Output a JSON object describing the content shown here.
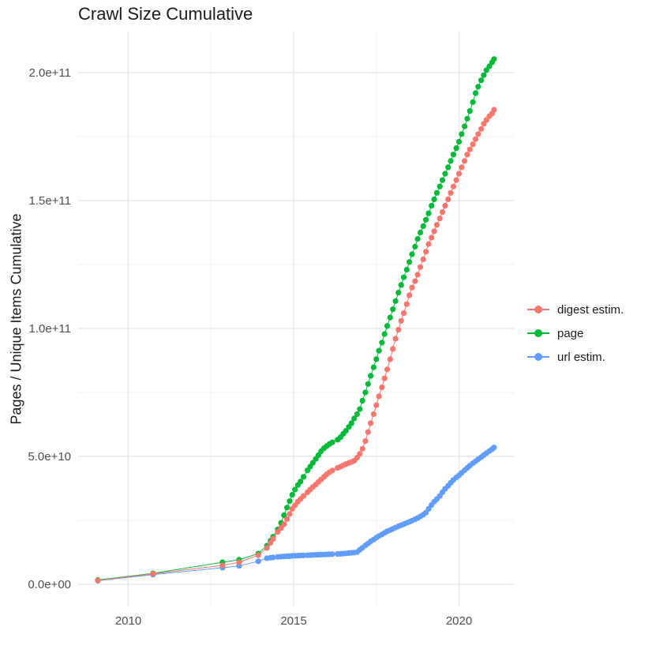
{
  "title": "Crawl Size Cumulative",
  "y_axis_title": "Pages / Unique Items Cumulative",
  "legend": {
    "position": "right",
    "items": [
      {
        "label": "digest estim.",
        "color": "#F8766D"
      },
      {
        "label": "page",
        "color": "#00BA38"
      },
      {
        "label": "url estim.",
        "color": "#619CFF"
      }
    ]
  },
  "style": {
    "background": "#FFFFFF",
    "grid_major_color": "#E8E8E8",
    "grid_minor_color": "#F1F1F1",
    "tick_text_color": "#4D4D4D",
    "title_text_color": "#1A1A1A"
  },
  "chart_data": {
    "type": "scatter",
    "title": "Crawl Size Cumulative",
    "xlabel": "",
    "ylabel": "Pages / Unique Items Cumulative",
    "grid": true,
    "legend_position": "right",
    "values_unit": "billions (value × 1e9 items)",
    "xlim": [
      2008.5,
      2021.7
    ],
    "ylim_e9": [
      0,
      215
    ],
    "x_ticks": [
      {
        "value": 2010,
        "label": "2010"
      },
      {
        "value": 2015,
        "label": "2015"
      },
      {
        "value": 2020,
        "label": "2020"
      }
    ],
    "x_minor": [
      2012.5,
      2017.5
    ],
    "y_ticks": [
      {
        "value_e9": 0,
        "label": "0.0e+00"
      },
      {
        "value_e9": 50,
        "label": "5.0e+10"
      },
      {
        "value_e9": 100,
        "label": "1.0e+11"
      },
      {
        "value_e9": 150,
        "label": "1.5e+11"
      },
      {
        "value_e9": 200,
        "label": "2.0e+11"
      }
    ],
    "y_minor_e9": [
      25,
      75,
      125,
      175
    ],
    "x": [
      2009.08,
      2010.75,
      2012.85,
      2013.35,
      2013.93,
      2014.19,
      2014.3,
      2014.38,
      2014.52,
      2014.62,
      2014.71,
      2014.8,
      2014.88,
      2014.96,
      2015.04,
      2015.13,
      2015.21,
      2015.3,
      2015.42,
      2015.5,
      2015.58,
      2015.67,
      2015.75,
      2015.83,
      2015.92,
      2016.0,
      2016.08,
      2016.17,
      2016.33,
      2016.42,
      2016.5,
      2016.58,
      2016.67,
      2016.75,
      2016.83,
      2016.92,
      2017.0,
      2017.08,
      2017.17,
      2017.25,
      2017.33,
      2017.42,
      2017.5,
      2017.58,
      2017.67,
      2017.75,
      2017.83,
      2017.92,
      2018.0,
      2018.08,
      2018.17,
      2018.25,
      2018.33,
      2018.42,
      2018.5,
      2018.58,
      2018.67,
      2018.75,
      2018.83,
      2018.92,
      2019.0,
      2019.08,
      2019.17,
      2019.25,
      2019.33,
      2019.42,
      2019.5,
      2019.58,
      2019.67,
      2019.75,
      2019.83,
      2019.92,
      2020.0,
      2020.08,
      2020.17,
      2020.25,
      2020.33,
      2020.42,
      2020.5,
      2020.58,
      2020.67,
      2020.75,
      2020.83,
      2020.92,
      2021.0,
      2021.06
    ],
    "series": [
      {
        "name": "digest estim.",
        "color": "#F8766D",
        "values_e9": [
          1.5,
          4.1,
          7.4,
          8.6,
          11.4,
          14.2,
          16.2,
          17.8,
          20.5,
          22.0,
          23.5,
          25.5,
          27.5,
          29.5,
          30.9,
          32.3,
          33.4,
          34.5,
          36.0,
          37.0,
          38.0,
          39.0,
          40.0,
          41.0,
          42.0,
          43.0,
          43.8,
          44.5,
          45.5,
          46.0,
          46.5,
          47.0,
          47.4,
          47.8,
          48.3,
          49.5,
          51.0,
          53.0,
          56.0,
          59.5,
          63.0,
          66.5,
          70.0,
          73.5,
          77.0,
          80.5,
          84.0,
          88.0,
          92.0,
          96.0,
          99.5,
          103.0,
          106.0,
          109.5,
          113.0,
          116.0,
          118.5,
          121.0,
          124.0,
          127.0,
          130.0,
          133.0,
          135.5,
          138.0,
          140.5,
          143.0,
          145.5,
          148.0,
          150.5,
          153.0,
          155.5,
          158.0,
          160.5,
          163.0,
          165.5,
          168.0,
          170.0,
          172.0,
          174.0,
          176.0,
          178.0,
          180.0,
          181.5,
          183.0,
          184.0,
          185.5
        ]
      },
      {
        "name": "page",
        "color": "#00BA38",
        "values_e9": [
          1.7,
          4.3,
          8.6,
          9.6,
          12.0,
          15.1,
          17.0,
          18.6,
          21.5,
          24.0,
          27.0,
          30.0,
          32.5,
          35.0,
          37.0,
          38.8,
          40.2,
          42.0,
          44.5,
          46.0,
          47.5,
          49.0,
          50.5,
          52.0,
          53.2,
          54.0,
          54.8,
          55.5,
          56.5,
          57.5,
          58.8,
          60.0,
          61.5,
          63.0,
          64.8,
          66.5,
          68.5,
          71.8,
          75.0,
          78.3,
          81.5,
          84.8,
          88.0,
          91.3,
          94.5,
          97.8,
          101.0,
          104.3,
          107.5,
          110.7,
          114.0,
          117.0,
          120.0,
          123.0,
          126.0,
          129.0,
          132.0,
          135.0,
          137.5,
          140.0,
          142.5,
          145.0,
          148.0,
          150.5,
          153.0,
          155.5,
          158.0,
          160.5,
          163.0,
          165.5,
          168.0,
          170.5,
          173.0,
          176.0,
          179.0,
          182.0,
          185.0,
          188.5,
          192.0,
          194.5,
          197.0,
          199.0,
          201.0,
          202.5,
          204.0,
          205.3
        ]
      },
      {
        "name": "url estim.",
        "color": "#619CFF",
        "values_e9": [
          1.4,
          3.8,
          6.5,
          7.2,
          9.0,
          10.2,
          10.4,
          10.5,
          10.7,
          10.8,
          10.9,
          11.0,
          11.0,
          11.1,
          11.15,
          11.2,
          11.25,
          11.3,
          11.35,
          11.4,
          11.45,
          11.5,
          11.55,
          11.6,
          11.65,
          11.7,
          11.75,
          11.8,
          11.85,
          11.9,
          12.0,
          12.1,
          12.2,
          12.3,
          12.4,
          12.6,
          13.5,
          14.3,
          15.2,
          16.0,
          16.8,
          17.5,
          18.2,
          18.9,
          19.5,
          20.1,
          20.7,
          21.2,
          21.7,
          22.2,
          22.7,
          23.1,
          23.5,
          24.0,
          24.4,
          24.9,
          25.4,
          25.9,
          26.5,
          27.2,
          28.0,
          29.5,
          31.0,
          32.3,
          33.3,
          34.5,
          36.0,
          37.3,
          38.5,
          39.7,
          40.8,
          41.8,
          42.6,
          43.6,
          44.6,
          45.5,
          46.4,
          47.3,
          48.1,
          48.9,
          49.7,
          50.5,
          51.3,
          52.1,
          52.8,
          53.5
        ]
      }
    ]
  }
}
